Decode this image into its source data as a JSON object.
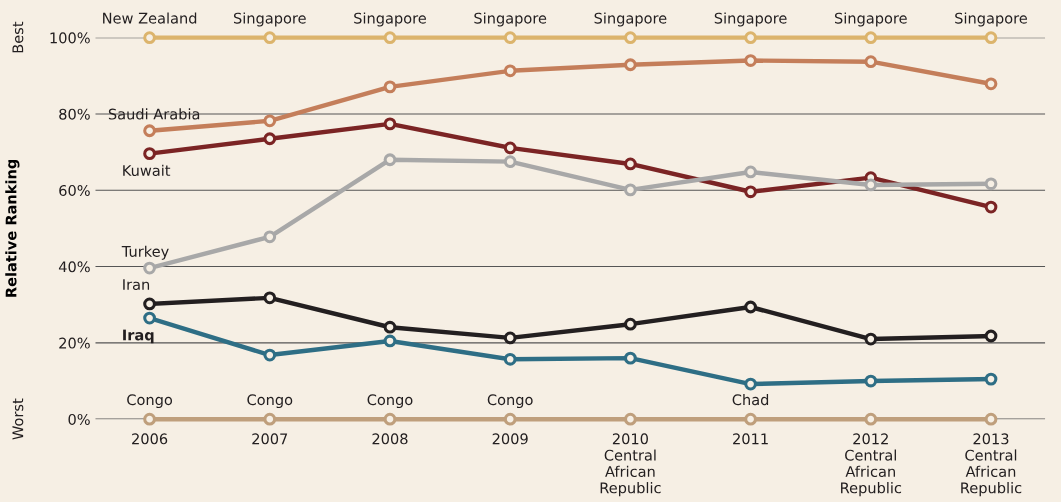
{
  "chart_data": {
    "type": "line",
    "ylabel": "Relative Ranking",
    "categories": [
      "2006",
      "2007",
      "2008",
      "2009",
      "2010\nCentral\nAfrican\nRepublic",
      "2011",
      "2012\nCentral\nAfrican\nRepublic",
      "2013\nCentral\nAfrican\nRepublic"
    ],
    "series": [
      {
        "color": "#dcb46c",
        "values": [
          100,
          100,
          100,
          100,
          100,
          100,
          100,
          100
        ]
      },
      {
        "name": "Saudi Arabia",
        "color": "#c47e5a",
        "values": [
          75.6,
          78.2,
          87.1,
          91.3,
          92.9,
          94.0,
          93.7,
          87.9
        ]
      },
      {
        "name": "Kuwait",
        "color": "#7b2424",
        "values": [
          69.6,
          73.5,
          77.4,
          71.1,
          66.9,
          59.6,
          63.3,
          55.6
        ]
      },
      {
        "name": "Turkey",
        "color": "#a8a8a8",
        "values": [
          39.6,
          47.8,
          68.0,
          67.5,
          60.1,
          64.8,
          61.4,
          61.7
        ]
      },
      {
        "name": "Iran",
        "color": "#231f20",
        "values": [
          30.2,
          31.8,
          24.1,
          21.3,
          24.9,
          29.4,
          21.0,
          21.8
        ]
      },
      {
        "name": "Iraq",
        "color": "#2e6e85",
        "values": [
          26.5,
          16.8,
          20.5,
          15.7,
          16.0,
          9.2,
          10.0,
          10.5
        ]
      },
      {
        "color": "#bf9f7c",
        "values": [
          0,
          0,
          0,
          0,
          0,
          0,
          0,
          0
        ]
      }
    ],
    "ylim": [
      0,
      100
    ],
    "yticks": [
      {
        "value": 0,
        "label": "0%"
      },
      {
        "value": 20,
        "label": "20%"
      },
      {
        "value": 40,
        "label": "40%"
      },
      {
        "value": 60,
        "label": "60%"
      },
      {
        "value": 80,
        "label": "80%"
      },
      {
        "value": 100,
        "label": "100%"
      }
    ],
    "annotations": [
      "Best",
      "Worst",
      {
        "text": "New Zealand",
        "x": "2006",
        "y": 100
      },
      {
        "text": "Singapore",
        "x": "2007",
        "y": 100
      },
      {
        "text": "Singapore",
        "x": "2008",
        "y": 100
      },
      {
        "text": "Singapore",
        "x": "2009",
        "y": 100
      },
      {
        "text": "Singapore",
        "x": "2010\nCentral\nAfrican\nRepublic",
        "y": 100
      },
      {
        "text": "Singapore",
        "x": "2011",
        "y": 100
      },
      {
        "text": "Singapore",
        "x": "2012\nCentral\nAfrican\nRepublic",
        "y": 100
      },
      {
        "text": "Singapore",
        "x": "2013\nCentral\nAfrican\nRepublic",
        "y": 100
      },
      {
        "text": "Congo",
        "x": "2006",
        "y": 0
      },
      {
        "text": "Congo",
        "x": "2007",
        "y": 0
      },
      {
        "text": "Congo",
        "x": "2008",
        "y": 0
      },
      {
        "text": "Congo",
        "x": "2009",
        "y": 0
      },
      {
        "text": "Chad",
        "x": "2011",
        "y": 0
      }
    ],
    "grid": "y",
    "legend": false,
    "marker": "circle",
    "line_style": "solid"
  }
}
